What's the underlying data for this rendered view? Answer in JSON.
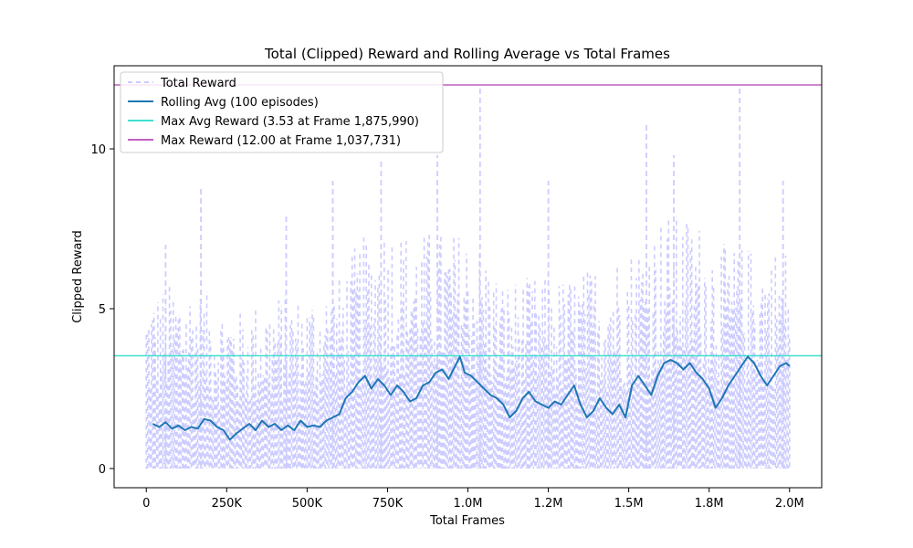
{
  "chart_data": {
    "type": "line",
    "title": "Total (Clipped) Reward and Rolling Average vs Total Frames",
    "xlabel": "Total Frames",
    "ylabel": "Clipped Reward",
    "xlim": [
      -100000,
      2100000
    ],
    "ylim": [
      -0.6,
      12.6
    ],
    "xticks": [
      {
        "value": 0,
        "label": "0"
      },
      {
        "value": 250000,
        "label": "250K"
      },
      {
        "value": 500000,
        "label": "500K"
      },
      {
        "value": 750000,
        "label": "750K"
      },
      {
        "value": 1000000,
        "label": "1.0M"
      },
      {
        "value": 1250000,
        "label": "1.2M"
      },
      {
        "value": 1500000,
        "label": "1.5M"
      },
      {
        "value": 1750000,
        "label": "1.8M"
      },
      {
        "value": 2000000,
        "label": "2.0M"
      }
    ],
    "yticks": [
      {
        "value": 0,
        "label": "0"
      },
      {
        "value": 5,
        "label": "5"
      },
      {
        "value": 10,
        "label": "10"
      }
    ],
    "grid": false,
    "legend_position": "top-left",
    "series": [
      {
        "name": "Total Reward",
        "style": "dashed",
        "color": "#ccccff",
        "envelope_x": [
          0,
          100000,
          200000,
          300000,
          400000,
          500000,
          600000,
          650000,
          700000,
          750000,
          800000,
          900000,
          1000000,
          1050000,
          1100000,
          1200000,
          1300000,
          1400000,
          1500000,
          1550000,
          1600000,
          1650000,
          1700000,
          1750000,
          1800000,
          1850000,
          1900000,
          1950000,
          2000000
        ],
        "typical_max": [
          5.5,
          6,
          5.5,
          5,
          5.5,
          5.5,
          6,
          7,
          7.5,
          8,
          7.5,
          7.5,
          7.5,
          7,
          6,
          6,
          6,
          6.5,
          7,
          7.5,
          8,
          8,
          8,
          7.5,
          7,
          7,
          7,
          7,
          7
        ],
        "peaks": [
          {
            "x": 60000,
            "y": 7.0
          },
          {
            "x": 170000,
            "y": 8.8
          },
          {
            "x": 435000,
            "y": 7.9
          },
          {
            "x": 580000,
            "y": 9.0
          },
          {
            "x": 730000,
            "y": 9.6
          },
          {
            "x": 905000,
            "y": 9.8
          },
          {
            "x": 1037731,
            "y": 12.0
          },
          {
            "x": 1250000,
            "y": 9.0
          },
          {
            "x": 1555000,
            "y": 10.8
          },
          {
            "x": 1640000,
            "y": 9.8
          },
          {
            "x": 1845000,
            "y": 12.0
          },
          {
            "x": 1980000,
            "y": 9.0
          }
        ]
      },
      {
        "name": "Rolling Avg (100 episodes)",
        "style": "solid",
        "color": "#1f77b4",
        "x": [
          20000,
          40000,
          60000,
          80000,
          100000,
          120000,
          140000,
          160000,
          180000,
          200000,
          220000,
          240000,
          260000,
          280000,
          300000,
          320000,
          340000,
          360000,
          380000,
          400000,
          420000,
          440000,
          460000,
          480000,
          500000,
          520000,
          540000,
          560000,
          580000,
          600000,
          620000,
          640000,
          660000,
          680000,
          700000,
          720000,
          740000,
          760000,
          780000,
          800000,
          820000,
          840000,
          860000,
          880000,
          900000,
          920000,
          940000,
          960000,
          975000,
          990000,
          1010000,
          1030000,
          1050000,
          1070000,
          1090000,
          1110000,
          1130000,
          1150000,
          1170000,
          1190000,
          1210000,
          1230000,
          1250000,
          1270000,
          1290000,
          1310000,
          1330000,
          1350000,
          1370000,
          1390000,
          1410000,
          1430000,
          1450000,
          1470000,
          1490000,
          1510000,
          1530000,
          1550000,
          1570000,
          1590000,
          1610000,
          1630000,
          1650000,
          1670000,
          1690000,
          1710000,
          1730000,
          1750000,
          1770000,
          1790000,
          1810000,
          1830000,
          1850000,
          1870000,
          1890000,
          1910000,
          1930000,
          1950000,
          1970000,
          1990000,
          2000000
        ],
        "y": [
          1.4,
          1.3,
          1.45,
          1.25,
          1.35,
          1.2,
          1.3,
          1.25,
          1.55,
          1.5,
          1.3,
          1.2,
          0.9,
          1.1,
          1.25,
          1.4,
          1.2,
          1.5,
          1.3,
          1.4,
          1.2,
          1.35,
          1.2,
          1.5,
          1.3,
          1.35,
          1.3,
          1.5,
          1.6,
          1.7,
          2.2,
          2.4,
          2.7,
          2.9,
          2.5,
          2.8,
          2.6,
          2.3,
          2.6,
          2.4,
          2.1,
          2.2,
          2.6,
          2.7,
          3.0,
          3.1,
          2.8,
          3.2,
          3.5,
          3.0,
          2.9,
          2.7,
          2.5,
          2.3,
          2.2,
          2.0,
          1.6,
          1.8,
          2.2,
          2.4,
          2.1,
          2.0,
          1.9,
          2.1,
          2.0,
          2.3,
          2.6,
          2.0,
          1.6,
          1.8,
          2.2,
          1.9,
          1.7,
          2.0,
          1.6,
          2.6,
          2.9,
          2.6,
          2.3,
          2.9,
          3.3,
          3.4,
          3.3,
          3.1,
          3.3,
          3.0,
          2.8,
          2.5,
          1.9,
          2.2,
          2.6,
          2.9,
          3.2,
          3.5,
          3.3,
          2.9,
          2.6,
          2.9,
          3.2,
          3.3,
          3.2
        ]
      },
      {
        "name": "Max Avg Reward (3.53 at Frame 1,875,990)",
        "style": "hline",
        "color": "#40e0d0",
        "y": 3.53
      },
      {
        "name": "Max Reward (12.00 at Frame 1,037,731)",
        "style": "hline",
        "color": "#c060c0",
        "y": 12.0
      }
    ]
  }
}
